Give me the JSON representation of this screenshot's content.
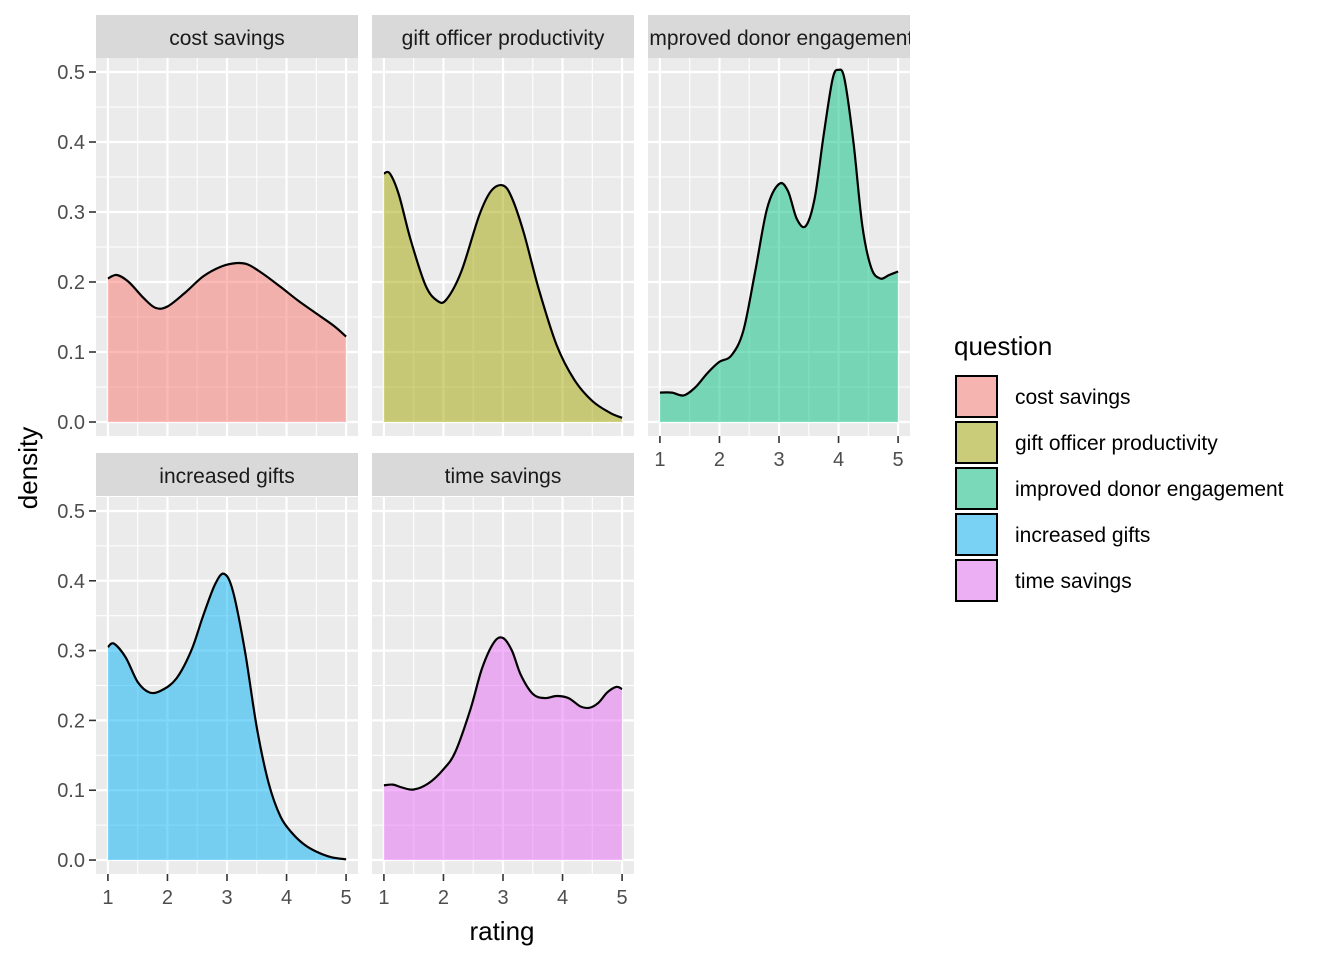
{
  "chart_data": {
    "type": "area",
    "facet_by": "question",
    "xlabel": "rating",
    "ylabel": "density",
    "xlim": [
      0.8,
      5.2
    ],
    "ylim": [
      -0.02,
      0.52
    ],
    "x_ticks": [
      1,
      2,
      3,
      4,
      5
    ],
    "y_ticks": [
      0.0,
      0.1,
      0.2,
      0.3,
      0.4,
      0.5
    ],
    "y_tick_labels": [
      "0.0",
      "0.1",
      "0.2",
      "0.3",
      "0.4",
      "0.5"
    ],
    "grid": true,
    "panel_background": "#ebebeb",
    "strip_background": "#d9d9d9",
    "fill_alpha": 0.5,
    "legend": {
      "title": "question",
      "position": "right"
    },
    "series": [
      {
        "name": "cost savings",
        "color": "#F8766D",
        "x": [
          1.0,
          1.15,
          1.35,
          1.6,
          1.8,
          2.0,
          2.3,
          2.6,
          2.9,
          3.15,
          3.35,
          3.6,
          3.9,
          4.2,
          4.5,
          4.8,
          5.0
        ],
        "y": [
          0.205,
          0.21,
          0.2,
          0.177,
          0.163,
          0.165,
          0.185,
          0.208,
          0.222,
          0.227,
          0.225,
          0.212,
          0.193,
          0.173,
          0.155,
          0.137,
          0.122
        ]
      },
      {
        "name": "gift officer productivity",
        "color": "#A3A500",
        "x": [
          1.0,
          1.1,
          1.25,
          1.45,
          1.7,
          1.9,
          2.05,
          2.3,
          2.6,
          2.8,
          3.0,
          3.15,
          3.35,
          3.6,
          3.9,
          4.2,
          4.5,
          4.8,
          5.0
        ],
        "y": [
          0.355,
          0.355,
          0.325,
          0.26,
          0.195,
          0.173,
          0.175,
          0.215,
          0.295,
          0.33,
          0.338,
          0.32,
          0.27,
          0.19,
          0.11,
          0.06,
          0.03,
          0.013,
          0.006
        ]
      },
      {
        "name": "improved donor engagement",
        "color": "#00BF7D",
        "x": [
          1.0,
          1.2,
          1.4,
          1.6,
          1.8,
          2.0,
          2.2,
          2.4,
          2.6,
          2.8,
          3.0,
          3.15,
          3.3,
          3.45,
          3.6,
          3.75,
          3.9,
          4.0,
          4.1,
          4.25,
          4.4,
          4.55,
          4.7,
          4.85,
          5.0
        ],
        "y": [
          0.042,
          0.042,
          0.038,
          0.05,
          0.07,
          0.086,
          0.095,
          0.13,
          0.215,
          0.305,
          0.34,
          0.33,
          0.29,
          0.28,
          0.32,
          0.41,
          0.49,
          0.503,
          0.49,
          0.4,
          0.28,
          0.22,
          0.205,
          0.21,
          0.215
        ]
      },
      {
        "name": "increased gifts",
        "color": "#00B0F6",
        "x": [
          1.0,
          1.1,
          1.3,
          1.5,
          1.7,
          1.9,
          2.15,
          2.4,
          2.6,
          2.8,
          2.95,
          3.1,
          3.3,
          3.5,
          3.7,
          3.9,
          4.1,
          4.3,
          4.5,
          4.75,
          5.0
        ],
        "y": [
          0.305,
          0.31,
          0.29,
          0.255,
          0.24,
          0.243,
          0.26,
          0.3,
          0.35,
          0.395,
          0.41,
          0.385,
          0.3,
          0.19,
          0.11,
          0.062,
          0.038,
          0.022,
          0.012,
          0.004,
          0.001
        ]
      },
      {
        "name": "time savings",
        "color": "#E76BF3",
        "x": [
          1.0,
          1.15,
          1.3,
          1.5,
          1.75,
          2.0,
          2.2,
          2.45,
          2.65,
          2.85,
          3.0,
          3.15,
          3.3,
          3.5,
          3.7,
          3.9,
          4.1,
          4.3,
          4.45,
          4.6,
          4.75,
          4.9,
          5.0
        ],
        "y": [
          0.107,
          0.108,
          0.104,
          0.101,
          0.11,
          0.13,
          0.155,
          0.215,
          0.275,
          0.312,
          0.318,
          0.3,
          0.265,
          0.238,
          0.232,
          0.235,
          0.232,
          0.22,
          0.218,
          0.225,
          0.24,
          0.248,
          0.245
        ]
      }
    ]
  }
}
